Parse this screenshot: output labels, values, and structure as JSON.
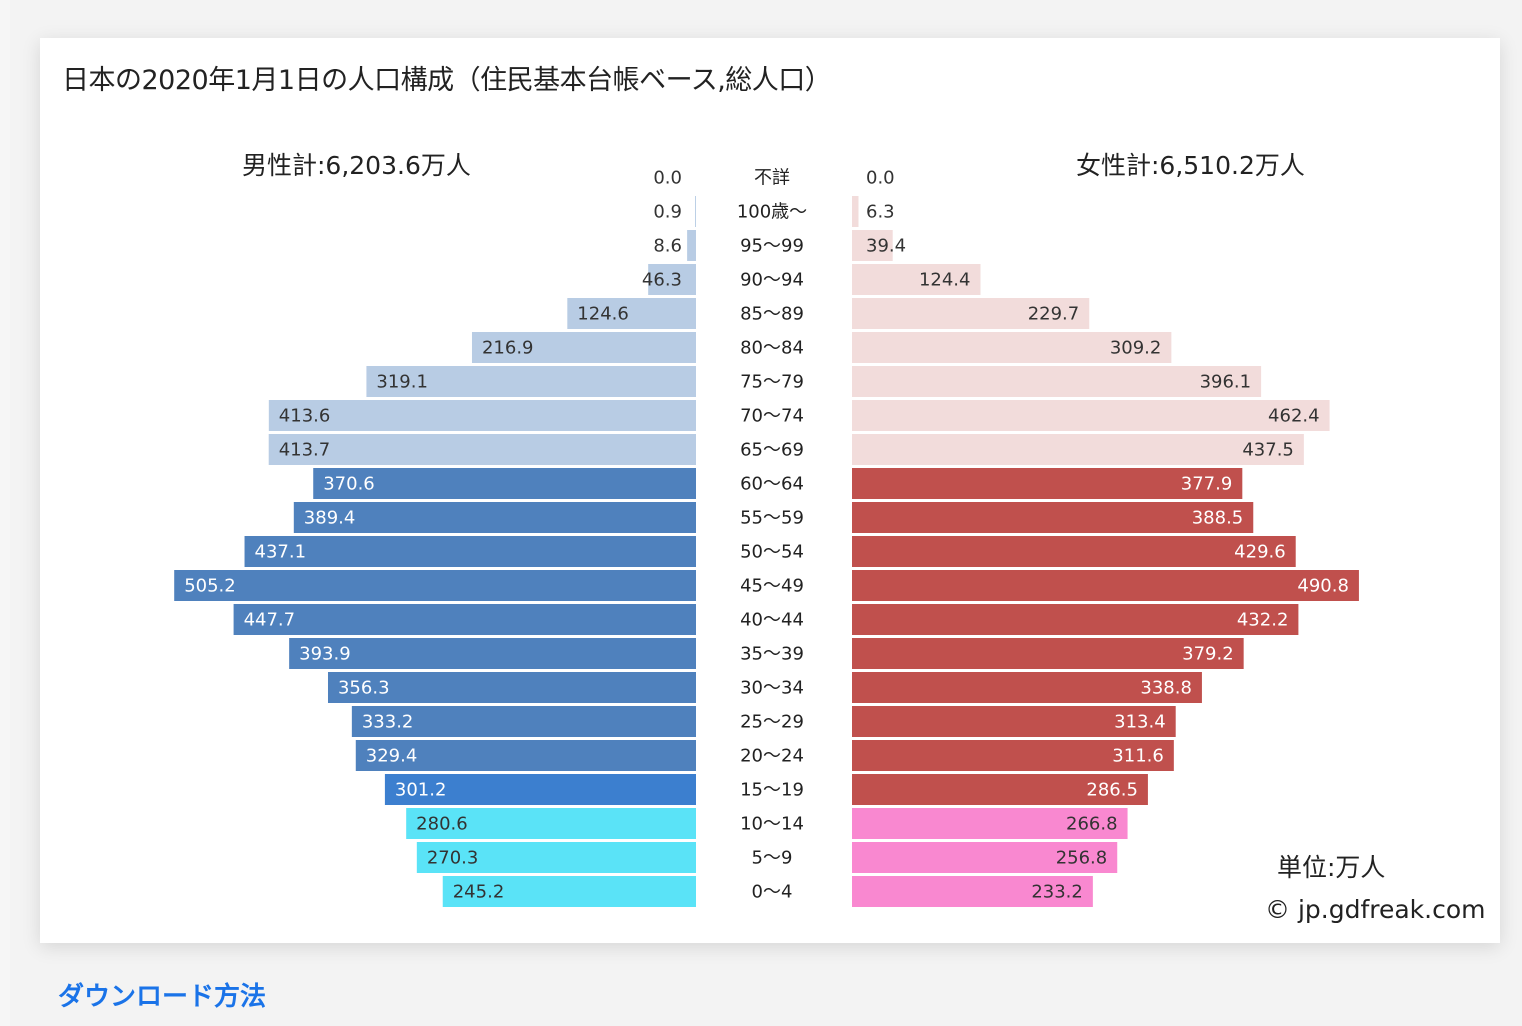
{
  "page": {
    "download_link": "ダウンロード方法"
  },
  "chart_data": {
    "type": "bar",
    "title": "日本の2020年1月1日の人口構成（住民基本台帳ベース,総人口）",
    "male_total_label": "男性計:6,203.6万人",
    "female_total_label": "女性計:6,510.2万人",
    "unit_label": "単位:万人",
    "copyright": "© jp.gdfreak.com",
    "categories": [
      "不詳",
      "100歳～",
      "95～99",
      "90～94",
      "85～89",
      "80～84",
      "75～79",
      "70～74",
      "65～69",
      "60～64",
      "55～59",
      "50～54",
      "45～49",
      "40～44",
      "35～39",
      "30～34",
      "25～29",
      "20～24",
      "15～19",
      "10～14",
      "5～9",
      "0～4"
    ],
    "series": [
      {
        "name": "男性",
        "values": [
          0.0,
          0.9,
          8.6,
          46.3,
          124.6,
          216.9,
          319.1,
          413.6,
          413.7,
          370.6,
          389.4,
          437.1,
          505.2,
          447.7,
          393.9,
          356.3,
          333.2,
          329.4,
          301.2,
          280.6,
          270.3,
          245.2
        ],
        "labels": [
          "0.0",
          "0.9",
          "8.6",
          "46.3",
          "124.6",
          "216.9",
          "319.1",
          "413.6",
          "413.7",
          "370.6",
          "389.4",
          "437.1",
          "505.2",
          "447.7",
          "393.9",
          "356.3",
          "333.2",
          "329.4",
          "301.2",
          "280.6",
          "270.3",
          "245.2"
        ]
      },
      {
        "name": "女性",
        "values": [
          0.0,
          6.3,
          39.4,
          124.4,
          229.7,
          309.2,
          396.1,
          462.4,
          437.5,
          377.9,
          388.5,
          429.6,
          490.8,
          432.2,
          379.2,
          338.8,
          313.4,
          311.6,
          286.5,
          266.8,
          256.8,
          233.2
        ],
        "labels": [
          "0.0",
          "6.3",
          "39.4",
          "124.4",
          "229.7",
          "309.2",
          "396.1",
          "462.4",
          "437.5",
          "377.9",
          "388.5",
          "429.6",
          "490.8",
          "432.2",
          "379.2",
          "338.8",
          "313.4",
          "311.6",
          "286.5",
          "266.8",
          "256.8",
          "233.2"
        ]
      }
    ],
    "group_colors": {
      "male_elderly": "#b8cce4",
      "male_working": "#4f81bd",
      "male_15_19": "#3c7fcf",
      "male_child": "#5ae3f7",
      "female_elderly": "#f2dcdb",
      "female_working": "#c0504d",
      "female_child": "#f988d0"
    },
    "grid": false,
    "legend": "none"
  }
}
